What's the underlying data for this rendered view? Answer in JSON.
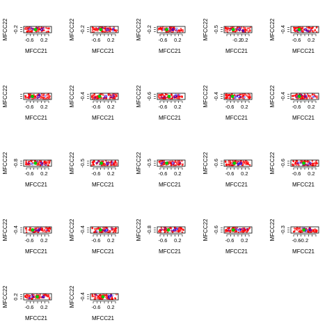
{
  "chart_data": {
    "type": "scatter",
    "layout": "grid of small-multiple scatter panels (5 columns)",
    "panel_count": 22,
    "xlabel": "MFCC21",
    "ylabel": "MFCC22",
    "x_ticks": [
      -0.6,
      0.2
    ],
    "x_range": [
      -0.9,
      0.6
    ],
    "colors": {
      "points_main": "#ff0000",
      "cluster_center": "#00cc00",
      "outline": "#0000ff",
      "axis": "#000000"
    },
    "panels": [
      {
        "y_tick": "-0.2",
        "y_range": [
          -0.35,
          0.05
        ]
      },
      {
        "y_tick": "-0.2",
        "y_range": [
          -0.35,
          0.05
        ]
      },
      {
        "y_tick": "-0.2",
        "y_range": [
          -0.35,
          0.05
        ]
      },
      {
        "y_tick": "-0.5",
        "y_range": [
          -0.7,
          -0.3
        ]
      },
      {
        "y_tick": "-0.4",
        "y_range": [
          -0.6,
          -0.2
        ]
      },
      {
        "y_tick": "",
        "y_range": [
          -0.35,
          0.05
        ]
      },
      {
        "y_tick": "-0.4",
        "y_range": [
          -0.6,
          -0.2
        ]
      },
      {
        "y_tick": "-0.6",
        "y_range": [
          -0.8,
          -0.4
        ]
      },
      {
        "y_tick": "-0.4",
        "y_range": [
          -0.6,
          -0.2
        ]
      },
      {
        "y_tick": "-0.4",
        "y_range": [
          -0.6,
          -0.2
        ]
      },
      {
        "y_tick": "-0.8",
        "y_range": [
          -1.0,
          -0.6
        ]
      },
      {
        "y_tick": "-0.5",
        "y_range": [
          -0.7,
          -0.3
        ]
      },
      {
        "y_tick": "-0.5",
        "y_range": [
          -0.7,
          -0.3
        ]
      },
      {
        "y_tick": "-0.6",
        "y_range": [
          -0.8,
          -0.4
        ]
      },
      {
        "y_tick": "-0.6",
        "y_range": [
          -0.8,
          -0.4
        ]
      },
      {
        "y_tick": "-0.4",
        "y_range": [
          -0.6,
          -0.2
        ]
      },
      {
        "y_tick": "-0.4",
        "y_range": [
          -0.6,
          -0.2
        ]
      },
      {
        "y_tick": "-0.8",
        "y_range": [
          -1.0,
          -0.6
        ]
      },
      {
        "y_tick": "-0.6",
        "y_range": [
          -0.8,
          -0.4
        ]
      },
      {
        "y_tick": "-0.3",
        "y_range": [
          -0.5,
          -0.1
        ]
      },
      {
        "y_tick": "0.2",
        "y_range": [
          0.0,
          0.4
        ]
      },
      {
        "y_tick": "-0.4",
        "y_range": [
          -0.6,
          -0.2
        ]
      }
    ],
    "x_ticks_per_panel": [
      [
        -0.6,
        0.2
      ],
      [
        -0.6,
        0.2
      ],
      [
        -0.6,
        0.2
      ],
      [
        -0.2,
        0.2
      ],
      [
        -0.6,
        0.2
      ],
      [
        -0.6,
        0.2
      ],
      [
        -0.6,
        0.2
      ],
      [
        -0.6,
        0.2
      ],
      [
        -0.6,
        0.2
      ],
      [
        -0.6,
        0.2
      ],
      [
        -0.6,
        0.2
      ],
      [
        -0.6,
        0.2
      ],
      [
        -0.6,
        0.2
      ],
      [
        -0.6,
        0.2
      ],
      [
        -0.6,
        0.2
      ],
      [
        -0.6,
        0.2
      ],
      [
        -0.6,
        0.2
      ],
      [
        -0.6,
        0.2
      ],
      [
        -0.6,
        0.2
      ],
      [
        -0.6,
        -0.2
      ],
      [
        -0.6,
        0.2
      ],
      [
        -0.6,
        0.2
      ]
    ],
    "x_tick_labels_per_panel": [
      [
        "-0.6",
        "0.2"
      ],
      [
        "-0.6",
        "0.2"
      ],
      [
        "-0.6",
        "0.2"
      ],
      [
        "-0.2",
        "0.2"
      ],
      [
        "-0.6",
        "0.2"
      ],
      [
        "-0.6",
        "0.2"
      ],
      [
        "-0.6",
        "0.2"
      ],
      [
        "-0.6",
        "0.2"
      ],
      [
        "-0.6",
        "0.2"
      ],
      [
        "-0.6",
        "0.2"
      ],
      [
        "-0.6",
        "0.2"
      ],
      [
        "-0.6",
        "0.2"
      ],
      [
        "-0.6",
        "0.2"
      ],
      [
        "-0.6",
        "0.2"
      ],
      [
        "-0.6",
        "0.2"
      ],
      [
        "-0.6",
        "0.2"
      ],
      [
        "-0.6",
        "0.2"
      ],
      [
        "-0.6",
        "0.2"
      ],
      [
        "-0.6",
        "0.2"
      ],
      [
        "-0.6",
        "-0.2"
      ],
      [
        "-0.6",
        "0.2"
      ],
      [
        "-0.6",
        "0.2"
      ]
    ]
  }
}
